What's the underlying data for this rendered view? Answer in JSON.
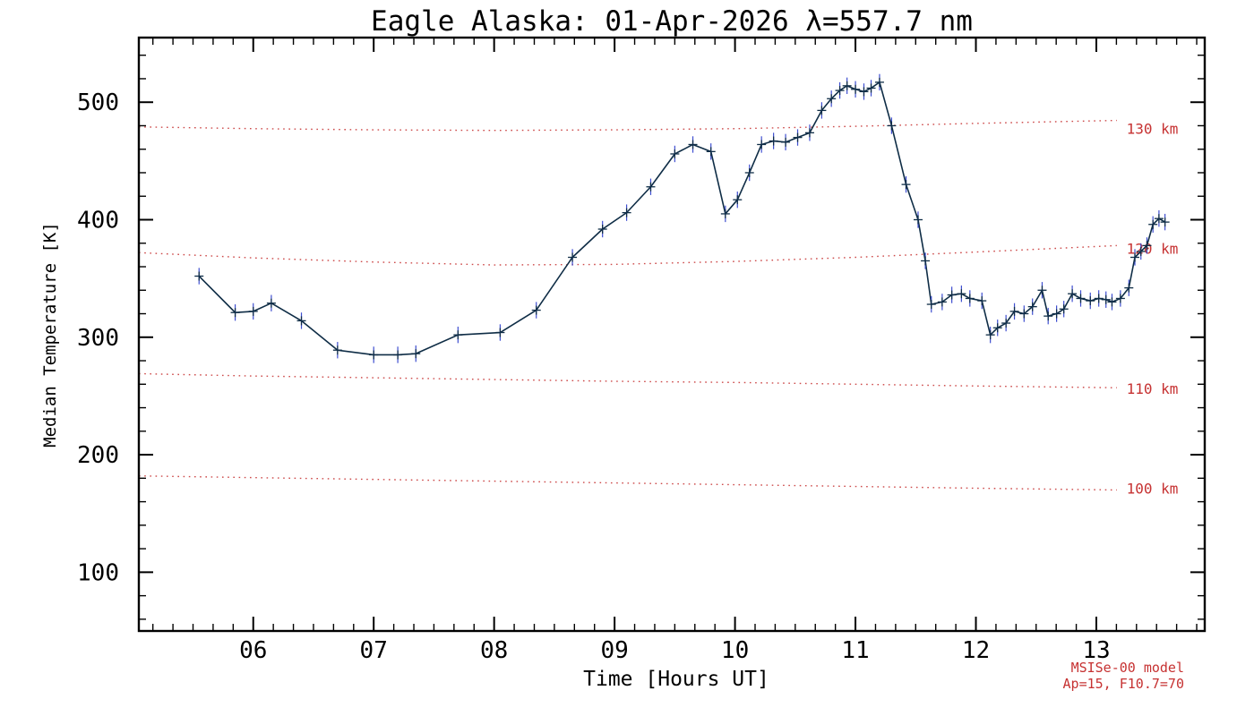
{
  "chart_data": {
    "type": "line",
    "title": "Eagle Alaska: 01-Apr-2026 λ=557.7 nm",
    "xlabel": "Time [Hours UT]",
    "ylabel": "Median Temperature [K]",
    "xlim": [
      5.05,
      13.9
    ],
    "ylim": [
      50,
      555
    ],
    "grid": false,
    "x_ticks": [
      6,
      7,
      8,
      9,
      10,
      11,
      12,
      13
    ],
    "x_tick_labels": [
      "06",
      "07",
      "08",
      "09",
      "10",
      "11",
      "12",
      "13"
    ],
    "y_ticks": [
      100,
      200,
      300,
      400,
      500
    ],
    "y_tick_labels": [
      "100",
      "200",
      "300",
      "400",
      "500"
    ],
    "x_minor_step": 0.1666667,
    "y_minor_step": 20,
    "axis_color": "#000000",
    "series": [
      {
        "name": "median-temperature",
        "color": "#0f2d46",
        "error_color": "#3e4ed0",
        "error_halfwidth_k": 7,
        "marker": "plus",
        "x": [
          5.55,
          5.85,
          6.0,
          6.15,
          6.4,
          6.7,
          7.0,
          7.2,
          7.35,
          7.7,
          8.05,
          8.35,
          8.65,
          8.9,
          9.1,
          9.3,
          9.5,
          9.65,
          9.8,
          9.92,
          10.02,
          10.12,
          10.22,
          10.32,
          10.42,
          10.52,
          10.62,
          10.72,
          10.8,
          10.87,
          10.93,
          11.0,
          11.07,
          11.13,
          11.2,
          11.3,
          11.42,
          11.52,
          11.58,
          11.63,
          11.72,
          11.8,
          11.88,
          11.95,
          12.05,
          12.12,
          12.18,
          12.25,
          12.32,
          12.4,
          12.47,
          12.55,
          12.6,
          12.67,
          12.73,
          12.8,
          12.87,
          12.95,
          13.02,
          13.08,
          13.13,
          13.2,
          13.27,
          13.32,
          13.37,
          13.42,
          13.47,
          13.52,
          13.57
        ],
        "y": [
          352,
          321,
          322,
          329,
          314,
          289,
          285,
          285,
          286,
          302,
          304,
          323,
          368,
          392,
          406,
          428,
          456,
          464,
          458,
          405,
          417,
          440,
          464,
          467,
          466,
          470,
          474,
          493,
          503,
          510,
          514,
          511,
          509,
          512,
          517,
          480,
          430,
          400,
          365,
          328,
          330,
          336,
          337,
          333,
          331,
          302,
          308,
          312,
          322,
          320,
          326,
          340,
          318,
          320,
          324,
          337,
          333,
          331,
          333,
          332,
          330,
          333,
          342,
          368,
          373,
          378,
          396,
          401,
          398
        ]
      }
    ],
    "reference_lines": [
      {
        "label": "130 km",
        "color": "#cd4a4a",
        "label_color": "#c63232",
        "x": [
          5.05,
          6,
          7,
          8,
          9,
          10,
          11,
          12,
          13.17
        ],
        "y": [
          479,
          477.5,
          476.5,
          476,
          476.5,
          477.5,
          479.5,
          482,
          484.5
        ],
        "label_t": 13.25,
        "label_T": 473
      },
      {
        "label": "120 km",
        "color": "#cd4a4a",
        "label_color": "#c63232",
        "x": [
          5.05,
          6,
          7,
          8,
          9,
          10,
          11,
          12,
          13.17
        ],
        "y": [
          372,
          367.5,
          364,
          361.5,
          362,
          364.5,
          368,
          372.5,
          378
        ],
        "label_t": 13.25,
        "label_T": 371
      },
      {
        "label": "110 km",
        "color": "#cd4a4a",
        "label_color": "#c63232",
        "x": [
          5.05,
          6,
          7,
          8,
          9,
          10,
          11,
          12,
          13.17
        ],
        "y": [
          269,
          267,
          265.5,
          264,
          262.5,
          261.5,
          260,
          258.5,
          257
        ],
        "label_t": 13.25,
        "label_T": 252
      },
      {
        "label": "100 km",
        "color": "#cd4a4a",
        "label_color": "#c63232",
        "x": [
          5.05,
          6,
          7,
          8,
          9,
          10,
          11,
          12,
          13.17
        ],
        "y": [
          182,
          180.5,
          179,
          177.5,
          176,
          174.5,
          173,
          171.5,
          170
        ],
        "label_t": 13.25,
        "label_T": 167
      }
    ],
    "annotations": {
      "model": "MSISe-00 model",
      "params": "Ap=15, F10.7=70"
    }
  }
}
